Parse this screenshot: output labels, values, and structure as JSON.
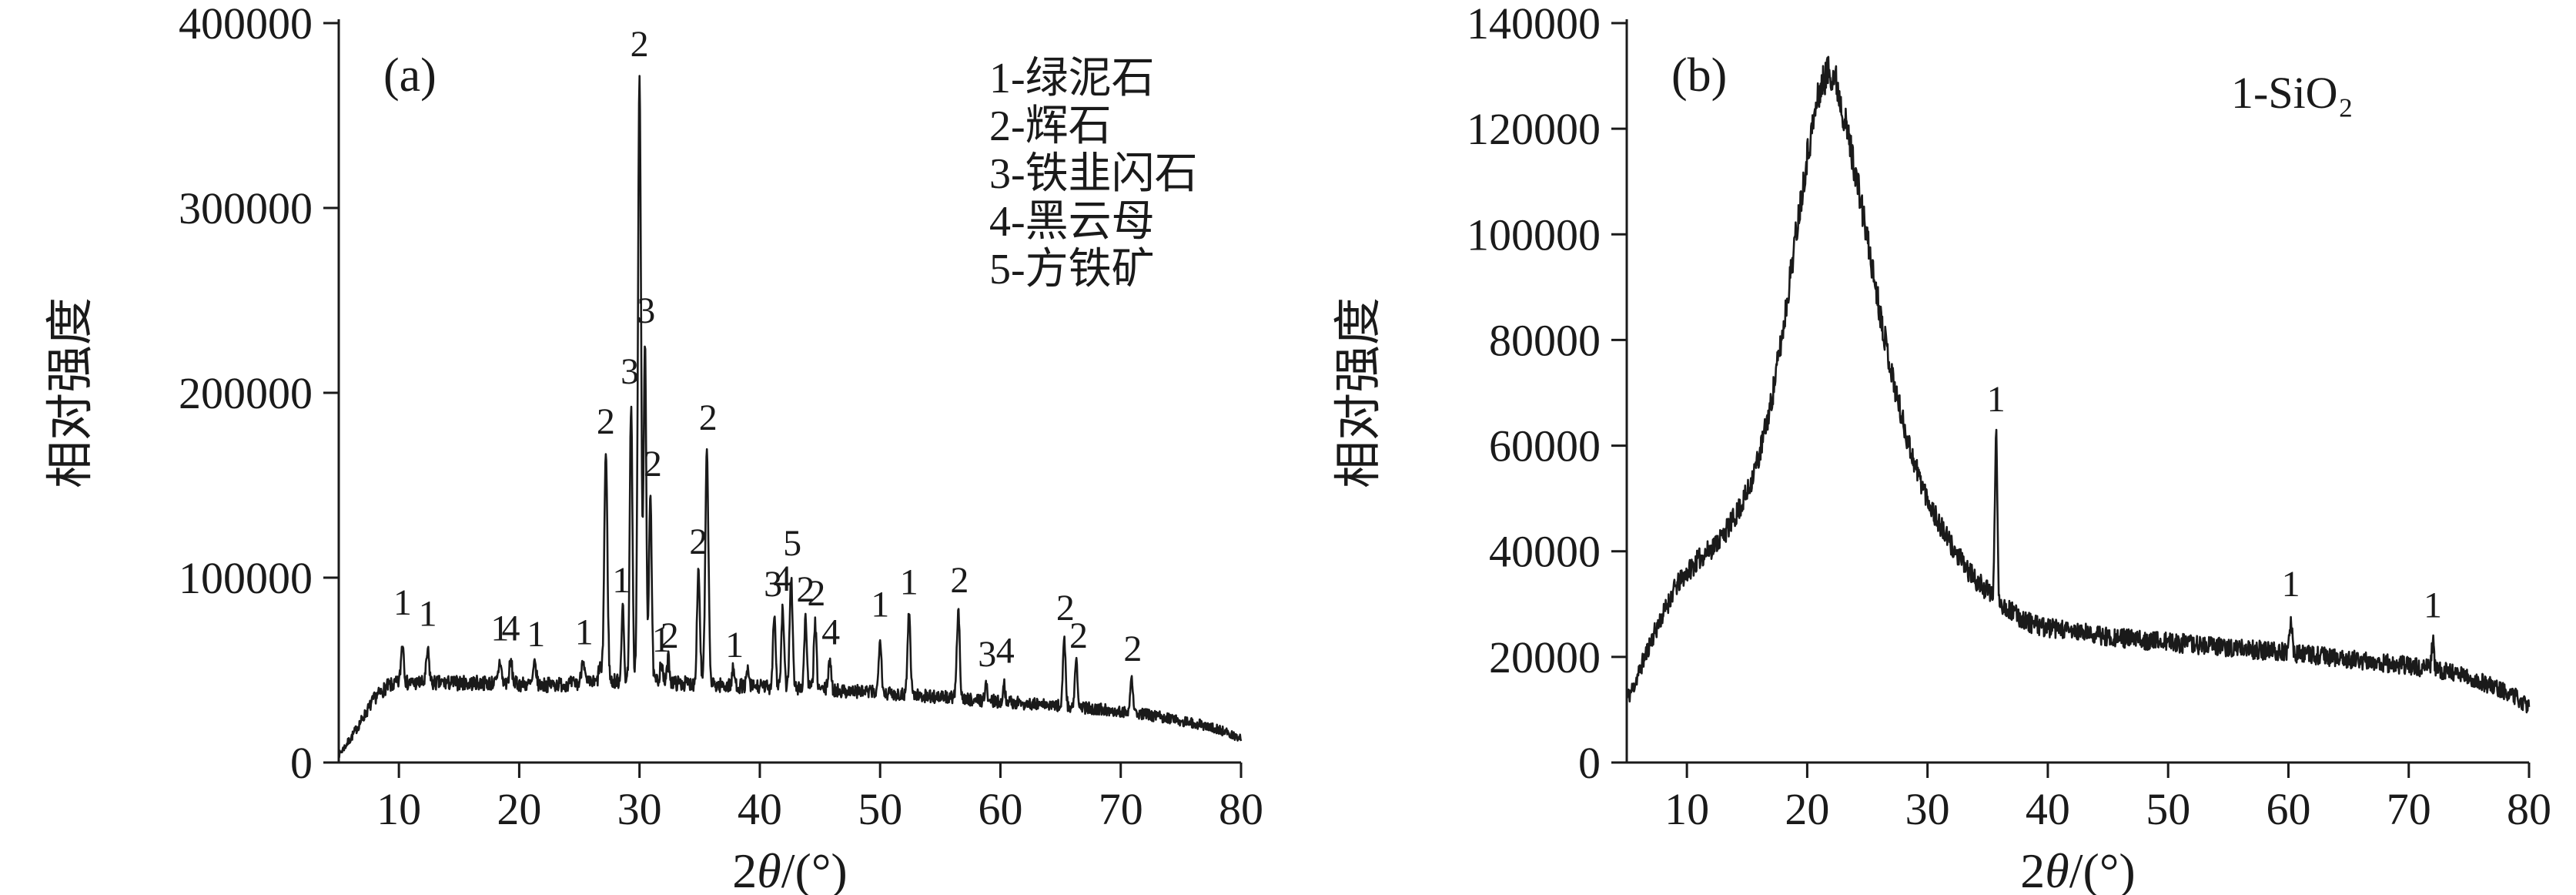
{
  "figure": {
    "background": "#ffffff",
    "line_color": "#1a1a1a"
  },
  "chart_data": [
    {
      "type": "line",
      "panel_label": "(a)",
      "xlabel": "2θ/(°)",
      "ylabel": "相对强度",
      "xlim": [
        5,
        80
      ],
      "ylim": [
        0,
        400000
      ],
      "xticks": [
        10,
        20,
        30,
        40,
        50,
        60,
        70,
        80
      ],
      "yticks": [
        0,
        100000,
        200000,
        300000,
        400000
      ],
      "grid": false,
      "legend": [
        "1-绿泥石",
        "2-辉石",
        "3-铁韭闪石",
        "4-黑云母",
        "5-方铁矿"
      ],
      "legend_pos": [
        1285,
        120
      ],
      "legend_font": 56,
      "seed": 7,
      "noise": [
        1500,
        0.06
      ],
      "baseline": [
        [
          5,
          4000
        ],
        [
          6,
          13000
        ],
        [
          7,
          24000
        ],
        [
          8,
          35000
        ],
        [
          9,
          41000
        ],
        [
          10,
          43000
        ],
        [
          14,
          43000
        ],
        [
          18,
          43000
        ],
        [
          22,
          42000
        ],
        [
          26,
          43000
        ],
        [
          30,
          45000
        ],
        [
          33,
          43000
        ],
        [
          36,
          42000
        ],
        [
          40,
          41000
        ],
        [
          44,
          40000
        ],
        [
          48,
          38500
        ],
        [
          52,
          37000
        ],
        [
          56,
          35000
        ],
        [
          60,
          33000
        ],
        [
          64,
          31000
        ],
        [
          68,
          29000
        ],
        [
          71,
          27000
        ],
        [
          74,
          24000
        ],
        [
          77,
          20000
        ],
        [
          79,
          16000
        ],
        [
          80,
          13000
        ]
      ],
      "peaks": [
        [
          10.3,
          22000,
          0.12
        ],
        [
          12.4,
          17000,
          0.12
        ],
        [
          18.4,
          12000,
          0.12
        ],
        [
          19.3,
          12000,
          0.12
        ],
        [
          21.3,
          11000,
          0.12
        ],
        [
          25.3,
          14000,
          0.12
        ],
        [
          26.7,
          9000,
          0.1
        ],
        [
          27.2,
          124000,
          0.13
        ],
        [
          28.6,
          40000,
          0.1
        ],
        [
          29.3,
          148000,
          0.11
        ],
        [
          30.0,
          325000,
          0.13
        ],
        [
          30.45,
          182000,
          0.11
        ],
        [
          30.9,
          103000,
          0.11
        ],
        [
          31.8,
          11000,
          0.1
        ],
        [
          32.4,
          13000,
          0.1
        ],
        [
          34.9,
          62000,
          0.12
        ],
        [
          35.6,
          125000,
          0.13
        ],
        [
          37.8,
          9000,
          0.1
        ],
        [
          39.0,
          8000,
          0.1
        ],
        [
          41.2,
          40000,
          0.11
        ],
        [
          41.9,
          42000,
          0.11
        ],
        [
          42.6,
          60000,
          0.12
        ],
        [
          43.8,
          38000,
          0.11
        ],
        [
          44.6,
          35000,
          0.11
        ],
        [
          45.8,
          17000,
          0.11
        ],
        [
          50.0,
          31000,
          0.11
        ],
        [
          52.4,
          44000,
          0.12
        ],
        [
          56.5,
          47000,
          0.12
        ],
        [
          58.8,
          8000,
          0.1
        ],
        [
          60.3,
          9000,
          0.1
        ],
        [
          65.3,
          37000,
          0.11
        ],
        [
          66.3,
          24000,
          0.11
        ],
        [
          70.9,
          21000,
          0.11
        ]
      ],
      "peak_labels": [
        [
          10.3,
          80000,
          "1"
        ],
        [
          12.4,
          74000,
          "1"
        ],
        [
          18.4,
          66000,
          "1"
        ],
        [
          19.3,
          66000,
          "4"
        ],
        [
          21.4,
          63000,
          "1"
        ],
        [
          25.4,
          64000,
          "1"
        ],
        [
          27.2,
          178000,
          "2"
        ],
        [
          28.5,
          92000,
          "1"
        ],
        [
          29.2,
          205000,
          "3"
        ],
        [
          30.0,
          382000,
          "2"
        ],
        [
          30.55,
          238000,
          "3"
        ],
        [
          31.1,
          155000,
          "2"
        ],
        [
          31.8,
          60000,
          "1"
        ],
        [
          32.5,
          62000,
          "2"
        ],
        [
          34.9,
          113000,
          "2"
        ],
        [
          35.7,
          180000,
          "2"
        ],
        [
          37.9,
          57000,
          "1"
        ],
        [
          41.1,
          90000,
          "3"
        ],
        [
          41.9,
          93000,
          "4"
        ],
        [
          42.7,
          112000,
          "5"
        ],
        [
          43.8,
          87000,
          "2"
        ],
        [
          44.7,
          85000,
          "2"
        ],
        [
          45.9,
          64000,
          "4"
        ],
        [
          50.0,
          79000,
          "1"
        ],
        [
          52.4,
          91000,
          "1"
        ],
        [
          56.6,
          92000,
          "2"
        ],
        [
          58.9,
          52000,
          "3"
        ],
        [
          60.4,
          54000,
          "4"
        ],
        [
          65.4,
          77000,
          "2"
        ],
        [
          66.5,
          62000,
          "2"
        ],
        [
          71.0,
          55000,
          "2"
        ]
      ]
    },
    {
      "type": "line",
      "panel_label": "(b)",
      "xlabel": "2θ/(°)",
      "ylabel": "相对强度",
      "xlim": [
        5,
        80
      ],
      "ylim": [
        0,
        140000
      ],
      "xticks": [
        10,
        20,
        30,
        40,
        50,
        60,
        70,
        80
      ],
      "yticks": [
        0,
        20000,
        40000,
        60000,
        80000,
        100000,
        120000,
        140000
      ],
      "grid": false,
      "legend": [
        "1-SiO₂"
      ],
      "legend_pos": [
        1225,
        140
      ],
      "legend_font": 58,
      "seed": 11,
      "noise": [
        1500,
        0.014
      ],
      "baseline": [
        [
          5,
          12000
        ],
        [
          5.5,
          14000
        ],
        [
          6,
          17000
        ],
        [
          7,
          23000
        ],
        [
          8,
          28000
        ],
        [
          9,
          33000
        ],
        [
          10,
          36000
        ],
        [
          11,
          38500
        ],
        [
          12,
          40500
        ],
        [
          13,
          43000
        ],
        [
          14,
          46500
        ],
        [
          15,
          51000
        ],
        [
          16,
          58000
        ],
        [
          17,
          68000
        ],
        [
          18,
          82000
        ],
        [
          19,
          99000
        ],
        [
          20,
          115000
        ],
        [
          21,
          127000
        ],
        [
          21.7,
          131000
        ],
        [
          22.3,
          130000
        ],
        [
          23,
          123000
        ],
        [
          24,
          112000
        ],
        [
          25,
          99000
        ],
        [
          26,
          86000
        ],
        [
          27,
          74000
        ],
        [
          28,
          64000
        ],
        [
          29,
          56000
        ],
        [
          30,
          50000
        ],
        [
          31,
          45000
        ],
        [
          32,
          41000
        ],
        [
          33,
          37500
        ],
        [
          34,
          34500
        ],
        [
          35,
          32500
        ],
        [
          36,
          30500
        ],
        [
          37,
          28500
        ],
        [
          38,
          27000
        ],
        [
          39,
          26000
        ],
        [
          40,
          25500
        ],
        [
          42,
          24800
        ],
        [
          44,
          24200
        ],
        [
          46,
          23600
        ],
        [
          48,
          23200
        ],
        [
          50,
          22800
        ],
        [
          52,
          22400
        ],
        [
          54,
          22000
        ],
        [
          56,
          21600
        ],
        [
          58,
          21200
        ],
        [
          60,
          20800
        ],
        [
          62,
          20300
        ],
        [
          64,
          19800
        ],
        [
          66,
          19300
        ],
        [
          68,
          18800
        ],
        [
          70,
          18300
        ],
        [
          71,
          18000
        ],
        [
          72,
          17800
        ],
        [
          73,
          17400
        ],
        [
          74,
          16800
        ],
        [
          75,
          16000
        ],
        [
          76,
          15200
        ],
        [
          77,
          14400
        ],
        [
          78,
          13500
        ],
        [
          79,
          12300
        ],
        [
          80,
          10500
        ]
      ],
      "peaks": [
        [
          35.7,
          31000,
          0.1
        ],
        [
          60.2,
          6500,
          0.1
        ],
        [
          72.0,
          5000,
          0.1
        ]
      ],
      "peak_labels": [
        [
          35.7,
          66500,
          "1"
        ],
        [
          60.2,
          31500,
          "1"
        ],
        [
          72.0,
          27500,
          "1"
        ]
      ]
    }
  ]
}
